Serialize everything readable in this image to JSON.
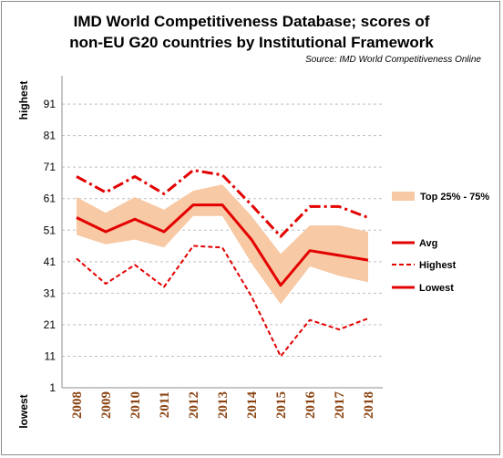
{
  "chart_data": {
    "type": "line",
    "title_lines": [
      "IMD World Competitiveness Database; scores of",
      "non-EU G20 countries by Institutional Framework"
    ],
    "source": "Source: IMD World Competitiveness Online",
    "y_top_label": "highest",
    "y_bottom_label": "lowest",
    "ylim": [
      1,
      100
    ],
    "yticks": [
      1,
      11,
      21,
      31,
      41,
      51,
      61,
      71,
      81,
      91
    ],
    "grid": true,
    "categories": [
      "2008",
      "2009",
      "2010",
      "2011",
      "2012",
      "2013",
      "2014",
      "2015",
      "2016",
      "2017",
      "2018"
    ],
    "band": {
      "name": "Top 25% - 75%",
      "upper": [
        61.5,
        56.5,
        61.5,
        57.5,
        63.5,
        65.5,
        55.5,
        43.5,
        52.5,
        52.5,
        50.5
      ],
      "lower": [
        49.5,
        46.5,
        48,
        45.5,
        55.5,
        55.5,
        40.5,
        27.5,
        39.5,
        36.5,
        34.5
      ]
    },
    "series": [
      {
        "name": "Avg",
        "values": [
          55,
          50.5,
          54.5,
          50.5,
          59,
          59,
          48,
          33.5,
          44.5,
          43,
          41.5
        ]
      },
      {
        "name": "Highest",
        "values": [
          42,
          34,
          40,
          33,
          46,
          45.5,
          30,
          11,
          22.5,
          19.5,
          23
        ]
      },
      {
        "name": "Lowest",
        "values": [
          68,
          63,
          68,
          62.5,
          70,
          68.5,
          59,
          49,
          58.5,
          58.5,
          55
        ]
      }
    ],
    "colors": {
      "line": "#e30000",
      "band": "#f7c9a5",
      "grid": "#bfbfbf",
      "xtick": "#8b4513"
    },
    "legend_position": "right"
  }
}
